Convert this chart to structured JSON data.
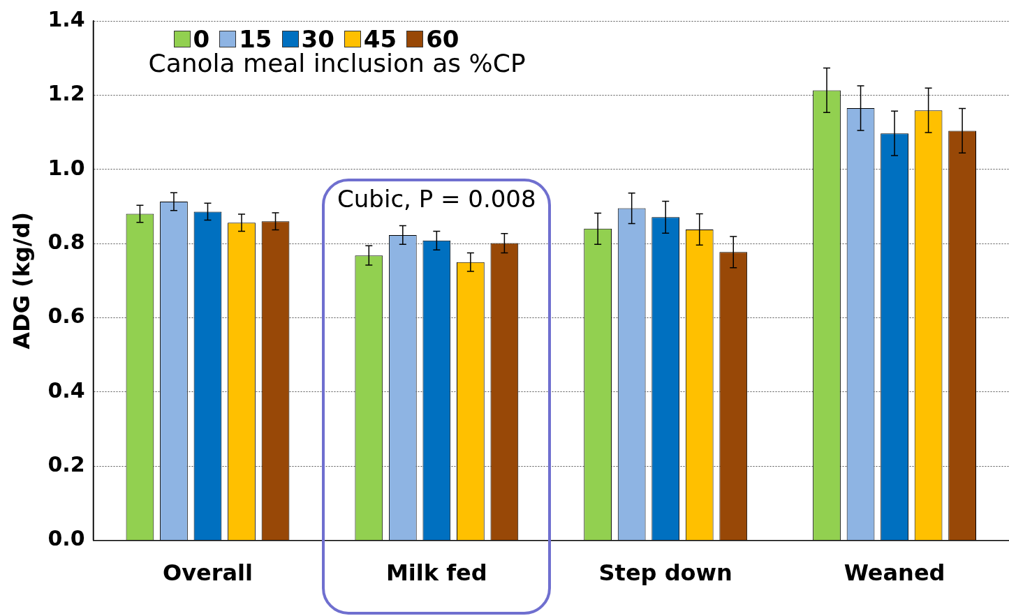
{
  "chart_data": {
    "type": "bar",
    "ylabel": "ADG (kg/d)",
    "legend_title": "Canola meal inclusion as %CP",
    "categories": [
      "Overall",
      "Milk fed",
      "Step down",
      "Weaned"
    ],
    "series": [
      {
        "name": "0",
        "color": "#92d050",
        "values": [
          0.88,
          0.768,
          0.84,
          1.213
        ],
        "errors": [
          0.023,
          0.026,
          0.042,
          0.06
        ]
      },
      {
        "name": "15",
        "color": "#8eb4e3",
        "values": [
          0.913,
          0.823,
          0.895,
          1.165
        ],
        "errors": [
          0.024,
          0.025,
          0.041,
          0.06
        ]
      },
      {
        "name": "30",
        "color": "#0070c0",
        "values": [
          0.886,
          0.808,
          0.871,
          1.097
        ],
        "errors": [
          0.023,
          0.025,
          0.043,
          0.06
        ]
      },
      {
        "name": "45",
        "color": "#ffc000",
        "values": [
          0.856,
          0.75,
          0.838,
          1.159
        ],
        "errors": [
          0.023,
          0.025,
          0.042,
          0.06
        ]
      },
      {
        "name": "60",
        "color": "#984807",
        "values": [
          0.86,
          0.801,
          0.777,
          1.104
        ],
        "errors": [
          0.023,
          0.026,
          0.042,
          0.06
        ]
      }
    ],
    "ylim": [
      0,
      1.4
    ],
    "yticks": [
      {
        "value": 0,
        "label": "0.0"
      },
      0.2,
      0.4,
      0.6,
      0.8,
      {
        "value": 1,
        "label": "1.0"
      },
      1.2,
      1.4
    ],
    "grid": "y",
    "legend": "top left",
    "annotations": [
      "Cubic, P = 0.008"
    ]
  }
}
